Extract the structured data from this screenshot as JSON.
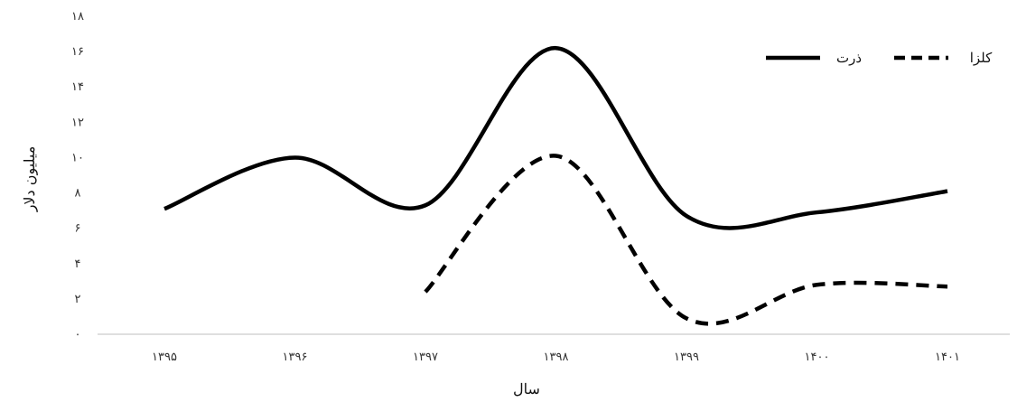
{
  "chart_data": {
    "type": "line",
    "title": "",
    "xlabel": "سال",
    "ylabel": "میلیون دلار",
    "categories": [
      "۱۳۹۵",
      "۱۳۹۶",
      "۱۳۹۷",
      "۱۳۹۸",
      "۱۳۹۹",
      "۱۴۰۰",
      "۱۴۰۱"
    ],
    "y_ticks": [
      "۰",
      "۲",
      "۴",
      "۶",
      "۸",
      "۱۰",
      "۱۲",
      "۱۴",
      "۱۶",
      "۱۸"
    ],
    "ylim": [
      0,
      18
    ],
    "grid": false,
    "legend_position": "top-right",
    "series": [
      {
        "name": "ذرت",
        "line_style": "solid",
        "color": "#000000",
        "values": [
          7.1,
          10.0,
          7.3,
          16.2,
          6.7,
          6.9,
          8.1
        ]
      },
      {
        "name": "کلزا",
        "line_style": "dashed",
        "color": "#000000",
        "values": [
          null,
          null,
          2.4,
          10.1,
          0.9,
          2.8,
          2.7
        ]
      }
    ]
  }
}
